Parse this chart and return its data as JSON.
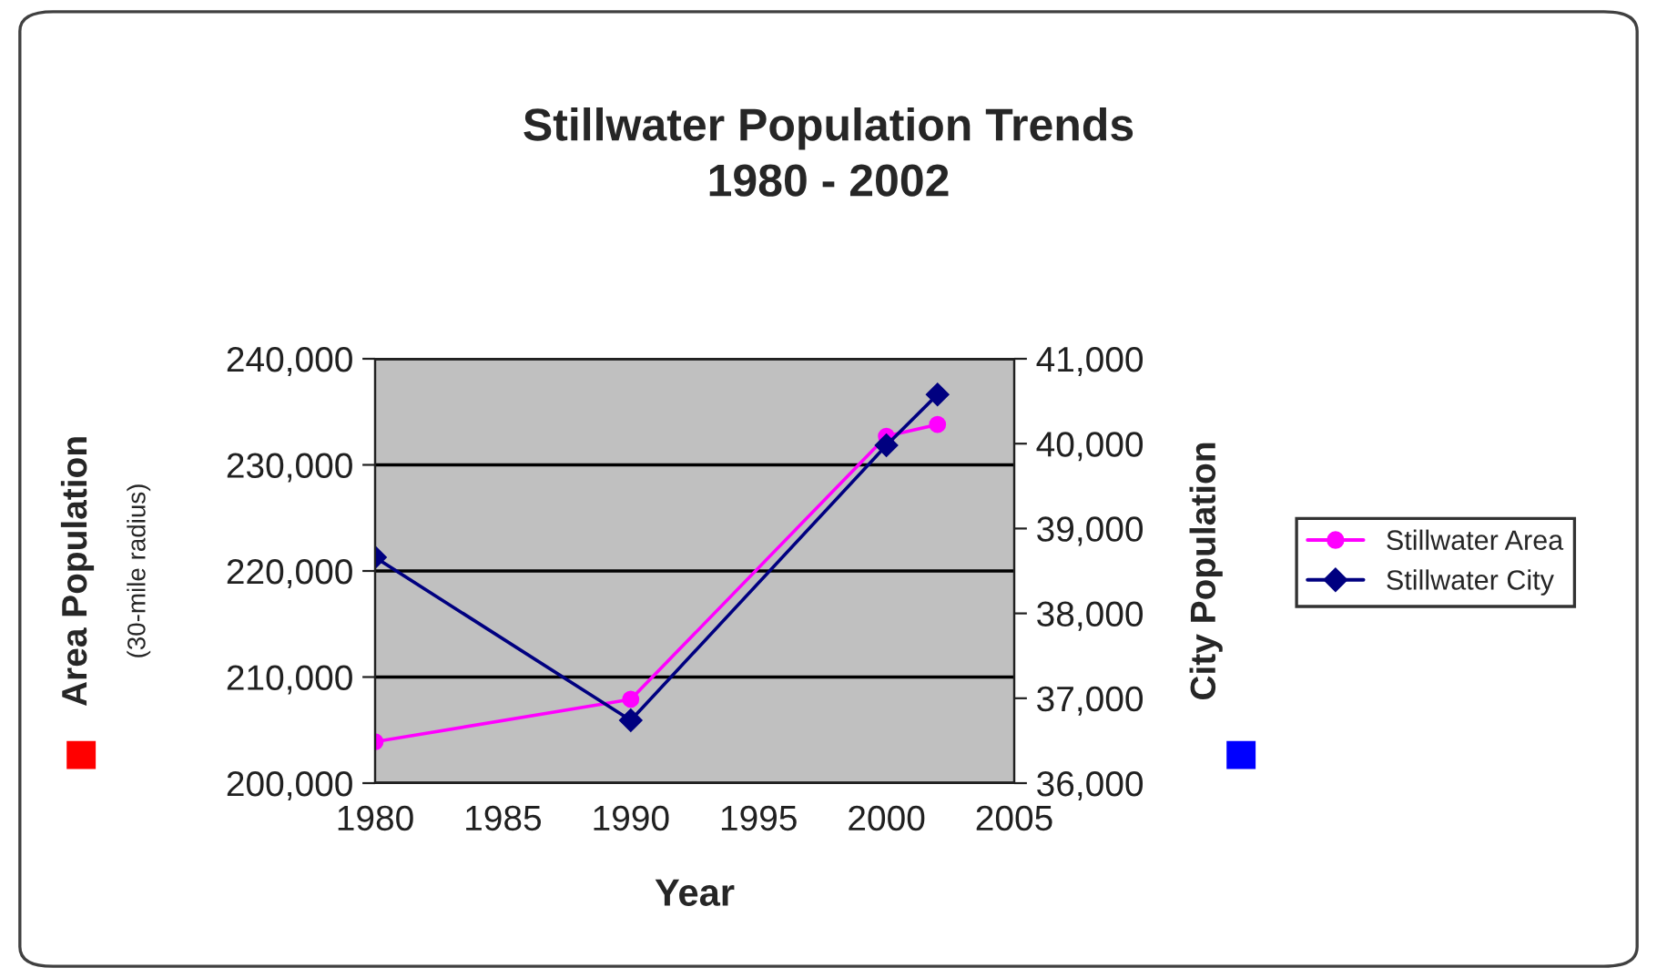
{
  "chart_data": {
    "type": "line",
    "title": "Stillwater Population Trends\n1980 - 2002",
    "xlabel": "Year",
    "ylabel": "Area Population",
    "y2label": "City Population",
    "annotations": [
      "(30-mile radius)"
    ],
    "x": [
      1980,
      1990,
      2000,
      2002
    ],
    "series": [
      {
        "name": "Stillwater Area",
        "color": "#ff00ff",
        "marker": "circle",
        "values": [
          203900,
          207900,
          232700,
          233800
        ]
      },
      {
        "name": "Stillwater City",
        "color": "#000080",
        "marker": "diamond",
        "axis": "y2",
        "values": [
          38660,
          36740,
          39980,
          40580
        ]
      }
    ],
    "xlim": [
      1980,
      2005
    ],
    "xticks": [
      1980,
      1985,
      1990,
      1995,
      2000,
      2005
    ],
    "ylim": [
      200000,
      240000
    ],
    "yticks": [
      {
        "value": 200000,
        "label": "200,000"
      },
      {
        "value": 210000,
        "label": "210,000"
      },
      {
        "value": 220000,
        "label": "220,000"
      },
      {
        "value": 230000,
        "label": "230,000"
      },
      {
        "value": 240000,
        "label": "240,000"
      }
    ],
    "y2lim": [
      36000,
      41000
    ],
    "y2ticks": [
      {
        "value": 36000,
        "label": "36,000"
      },
      {
        "value": 37000,
        "label": "37,000"
      },
      {
        "value": 38000,
        "label": "38,000"
      },
      {
        "value": 39000,
        "label": "39,000"
      },
      {
        "value": 40000,
        "label": "40,000"
      },
      {
        "value": 41000,
        "label": "41,000"
      }
    ],
    "grid": "y",
    "legend": "right"
  }
}
